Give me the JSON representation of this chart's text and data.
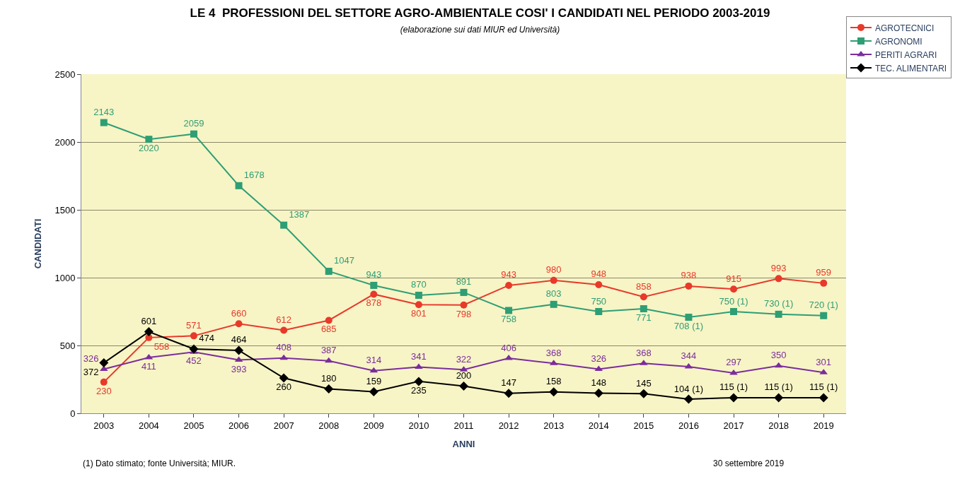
{
  "chart_data": {
    "type": "line",
    "title": "LE 4  PROFESSIONI DEL SETTORE AGRO-AMBIENTALE COSI' I CANDIDATI NEL PERIODO 2003-2019",
    "subtitle": "(elaborazione sui dati MIUR ed Università)",
    "xlabel": "ANNI",
    "ylabel": "CANDIDATI",
    "categories": [
      "2003",
      "2004",
      "2005",
      "2006",
      "2007",
      "2008",
      "2009",
      "2010",
      "2011",
      "2012",
      "2013",
      "2014",
      "2015",
      "2016",
      "2017",
      "2018",
      "2019"
    ],
    "ylim": [
      0,
      2500
    ],
    "yticks": [
      0,
      500,
      1000,
      1500,
      2000,
      2500
    ],
    "grid": "y",
    "legend": "top right",
    "data_labels": true,
    "series": [
      {
        "name": "AGROTECNICI",
        "color": "#e8392a",
        "marker": "circle",
        "values": [
          230,
          558,
          571,
          660,
          612,
          685,
          878,
          801,
          798,
          943,
          980,
          948,
          858,
          938,
          915,
          993,
          959
        ]
      },
      {
        "name": "AGRONOMI",
        "color": "#2e9e74",
        "marker": "square",
        "values": [
          2143,
          2020,
          2059,
          1678,
          1387,
          1047,
          943,
          870,
          891,
          758,
          803,
          750,
          771,
          708,
          750,
          730,
          720
        ],
        "value_labels": [
          "2143",
          "2020",
          "2059",
          "1678",
          "1387",
          "1047",
          "943",
          "870",
          "891",
          "758",
          "803",
          "750",
          "771",
          "708 (1)",
          "750 (1)",
          "730 (1)",
          "720 (1)"
        ]
      },
      {
        "name": "PERITI AGRARI",
        "color": "#7b2d9b",
        "marker": "triangle",
        "values": [
          326,
          411,
          452,
          393,
          408,
          387,
          314,
          341,
          322,
          406,
          368,
          326,
          368,
          344,
          297,
          350,
          301
        ]
      },
      {
        "name": "TEC. ALIMENTARI",
        "color": "#000000",
        "marker": "diamond",
        "values": [
          372,
          601,
          474,
          464,
          260,
          180,
          159,
          235,
          200,
          147,
          158,
          148,
          145,
          104,
          115,
          115,
          115
        ],
        "value_labels": [
          "372",
          "601",
          "474",
          "464",
          "260",
          "180",
          "159",
          "235",
          "200",
          "147",
          "158",
          "148",
          "145",
          "104 (1)",
          "115 (1)",
          "115 (1)",
          "115 (1)"
        ]
      }
    ],
    "annotations": [
      "(1) Dato stimato; fonte Università; MIUR.",
      "30 settembre 2019"
    ]
  }
}
